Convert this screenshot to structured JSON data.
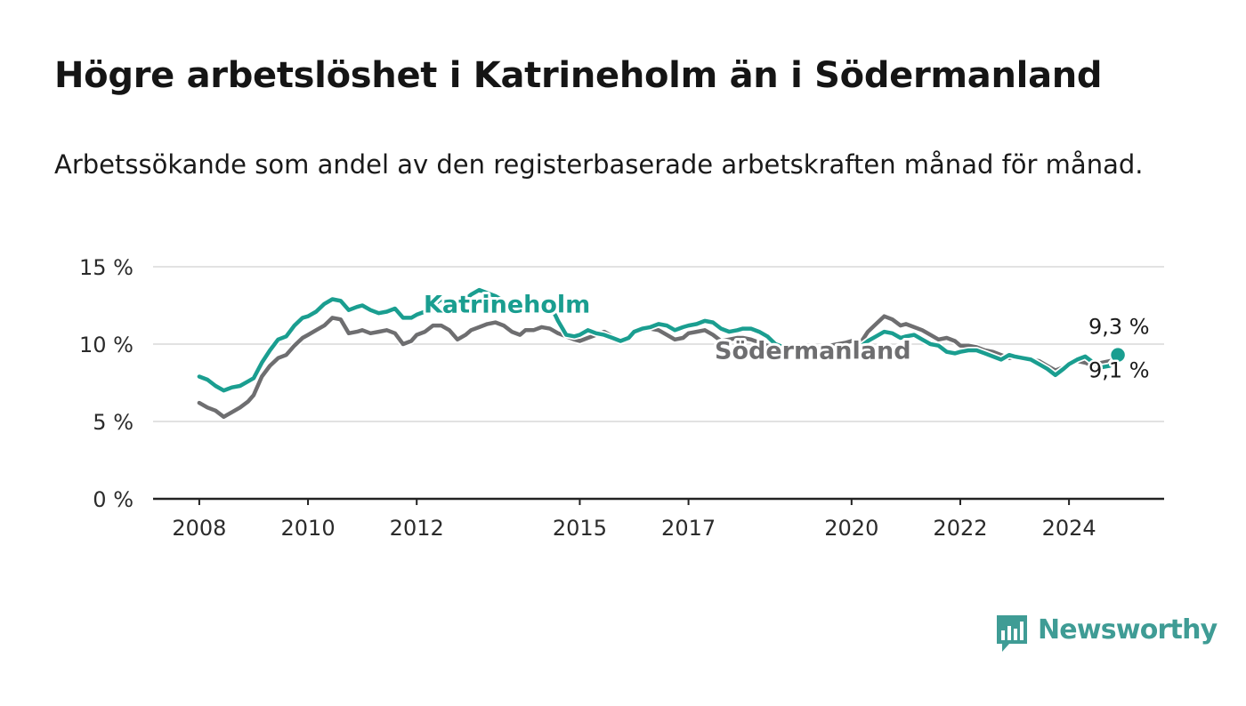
{
  "title": "Högre arbetslöshet i Katrineholm än i Södermanland",
  "subtitle": "Arbetssökande som andel av den registerbaserade arbetskraften månad för månad.",
  "brand": {
    "name": "Newsworthy",
    "color": "#3f9c95",
    "icon": "bar-chart-bubble-icon"
  },
  "chart_data": {
    "type": "line",
    "ylim": [
      0,
      15
    ],
    "yticks": [
      {
        "value": 0,
        "label": "0 %"
      },
      {
        "value": 5,
        "label": "5 %"
      },
      {
        "value": 10,
        "label": "10 %"
      },
      {
        "value": 15,
        "label": "15 %"
      }
    ],
    "xlim": [
      2007.15,
      2025.75
    ],
    "xticks": [
      {
        "value": 2008,
        "label": "2008"
      },
      {
        "value": 2010,
        "label": "2010"
      },
      {
        "value": 2012,
        "label": "2012"
      },
      {
        "value": 2015,
        "label": "2015"
      },
      {
        "value": 2017,
        "label": "2017"
      },
      {
        "value": 2020,
        "label": "2020"
      },
      {
        "value": 2022,
        "label": "2022"
      },
      {
        "value": 2024,
        "label": "2024"
      }
    ],
    "grid": true,
    "series": [
      {
        "name": "Södermanland",
        "color": "#6e6e70",
        "end_label": "9,1 %",
        "x": [
          2008.0,
          2008.15,
          2008.3,
          2008.45,
          2008.6,
          2008.75,
          2008.9,
          2009.0,
          2009.15,
          2009.3,
          2009.45,
          2009.6,
          2009.75,
          2009.9,
          2010.0,
          2010.15,
          2010.3,
          2010.45,
          2010.6,
          2010.75,
          2010.9,
          2011.0,
          2011.15,
          2011.3,
          2011.45,
          2011.6,
          2011.75,
          2011.9,
          2012.0,
          2012.15,
          2012.3,
          2012.45,
          2012.6,
          2012.75,
          2012.9,
          2013.0,
          2013.15,
          2013.3,
          2013.45,
          2013.6,
          2013.75,
          2013.9,
          2014.0,
          2014.15,
          2014.3,
          2014.45,
          2014.6,
          2014.75,
          2014.9,
          2015.0,
          2015.15,
          2015.3,
          2015.45,
          2015.6,
          2015.75,
          2015.9,
          2016.0,
          2016.15,
          2016.3,
          2016.45,
          2016.6,
          2016.75,
          2016.9,
          2017.0,
          2017.15,
          2017.3,
          2017.45,
          2017.6,
          2017.75,
          2017.9,
          2018.0,
          2018.15,
          2018.3,
          2018.45,
          2018.6,
          2018.75,
          2018.9,
          2019.0,
          2019.15,
          2019.3,
          2019.45,
          2019.6,
          2019.75,
          2019.9,
          2020.0,
          2020.15,
          2020.3,
          2020.45,
          2020.6,
          2020.75,
          2020.9,
          2021.0,
          2021.15,
          2021.3,
          2021.45,
          2021.6,
          2021.75,
          2021.9,
          2022.0,
          2022.15,
          2022.3,
          2022.45,
          2022.6,
          2022.75,
          2022.9,
          2023.0,
          2023.15,
          2023.3,
          2023.45,
          2023.6,
          2023.75,
          2023.9,
          2024.0,
          2024.15,
          2024.3,
          2024.45,
          2024.6,
          2024.75,
          2024.9
        ],
        "values": [
          6.2,
          5.9,
          5.7,
          5.3,
          5.6,
          5.9,
          6.3,
          6.7,
          7.9,
          8.6,
          9.1,
          9.3,
          9.9,
          10.4,
          10.6,
          10.9,
          11.2,
          11.7,
          11.6,
          10.7,
          10.8,
          10.9,
          10.7,
          10.8,
          10.9,
          10.7,
          10.0,
          10.2,
          10.6,
          10.8,
          11.2,
          11.2,
          10.9,
          10.3,
          10.6,
          10.9,
          11.1,
          11.3,
          11.4,
          11.2,
          10.8,
          10.6,
          10.9,
          10.9,
          11.1,
          11.0,
          10.7,
          10.5,
          10.3,
          10.2,
          10.4,
          10.6,
          10.8,
          10.5,
          10.2,
          10.3,
          10.7,
          10.9,
          11.0,
          10.9,
          10.6,
          10.3,
          10.4,
          10.7,
          10.8,
          10.9,
          10.6,
          10.2,
          10.3,
          10.4,
          10.4,
          10.3,
          10.1,
          9.9,
          9.8,
          9.7,
          9.7,
          9.6,
          9.6,
          9.7,
          9.8,
          9.9,
          10.0,
          10.1,
          10.2,
          10.0,
          10.8,
          11.3,
          11.8,
          11.6,
          11.2,
          11.3,
          11.1,
          10.9,
          10.6,
          10.3,
          10.4,
          10.2,
          9.9,
          9.9,
          9.8,
          9.6,
          9.5,
          9.3,
          9.1,
          9.2,
          9.1,
          9.0,
          8.9,
          8.6,
          8.3,
          8.5,
          8.7,
          8.9,
          8.8,
          8.6,
          8.8,
          8.9,
          9.1
        ]
      },
      {
        "name": "Katrineholm",
        "color": "#1a9e90",
        "end_label": "9,3 %",
        "x": [
          2008.0,
          2008.15,
          2008.3,
          2008.45,
          2008.6,
          2008.75,
          2008.9,
          2009.0,
          2009.15,
          2009.3,
          2009.45,
          2009.6,
          2009.75,
          2009.9,
          2010.0,
          2010.15,
          2010.3,
          2010.45,
          2010.6,
          2010.75,
          2010.9,
          2011.0,
          2011.15,
          2011.3,
          2011.45,
          2011.6,
          2011.75,
          2011.9,
          2012.0,
          2012.15,
          2012.3,
          2012.45,
          2012.6,
          2012.75,
          2012.9,
          2013.0,
          2013.15,
          2013.3,
          2013.45,
          2013.6,
          2013.75,
          2013.9,
          2014.0,
          2014.15,
          2014.3,
          2014.45,
          2014.6,
          2014.75,
          2014.9,
          2015.0,
          2015.15,
          2015.3,
          2015.45,
          2015.6,
          2015.75,
          2015.9,
          2016.0,
          2016.15,
          2016.3,
          2016.45,
          2016.6,
          2016.75,
          2016.9,
          2017.0,
          2017.15,
          2017.3,
          2017.45,
          2017.6,
          2017.75,
          2017.9,
          2018.0,
          2018.15,
          2018.3,
          2018.45,
          2018.6,
          2018.75,
          2018.9,
          2019.0,
          2019.15,
          2019.3,
          2019.45,
          2019.6,
          2019.75,
          2019.9,
          2020.0,
          2020.15,
          2020.3,
          2020.45,
          2020.6,
          2020.75,
          2020.9,
          2021.0,
          2021.15,
          2021.3,
          2021.45,
          2021.6,
          2021.75,
          2021.9,
          2022.0,
          2022.15,
          2022.3,
          2022.45,
          2022.6,
          2022.75,
          2022.9,
          2023.0,
          2023.15,
          2023.3,
          2023.45,
          2023.6,
          2023.75,
          2023.9,
          2024.0,
          2024.15,
          2024.3,
          2024.45,
          2024.6,
          2024.75,
          2024.9
        ],
        "values": [
          7.9,
          7.7,
          7.3,
          7.0,
          7.2,
          7.3,
          7.6,
          7.8,
          8.8,
          9.6,
          10.3,
          10.5,
          11.2,
          11.7,
          11.8,
          12.1,
          12.6,
          12.9,
          12.8,
          12.2,
          12.4,
          12.5,
          12.2,
          12.0,
          12.1,
          12.3,
          11.7,
          11.7,
          11.9,
          12.1,
          12.5,
          12.9,
          12.7,
          12.6,
          12.9,
          13.2,
          13.5,
          13.3,
          13.1,
          12.8,
          12.4,
          12.3,
          12.6,
          12.5,
          12.7,
          12.6,
          11.5,
          10.6,
          10.5,
          10.6,
          10.9,
          10.7,
          10.6,
          10.4,
          10.2,
          10.4,
          10.8,
          11.0,
          11.1,
          11.3,
          11.2,
          10.9,
          11.1,
          11.2,
          11.3,
          11.5,
          11.4,
          11.0,
          10.8,
          10.9,
          11.0,
          11.0,
          10.8,
          10.5,
          10.0,
          9.8,
          9.7,
          9.5,
          9.5,
          9.5,
          9.6,
          9.7,
          9.6,
          9.5,
          9.7,
          9.8,
          10.2,
          10.5,
          10.8,
          10.7,
          10.4,
          10.5,
          10.6,
          10.3,
          10.0,
          9.9,
          9.5,
          9.4,
          9.5,
          9.6,
          9.6,
          9.4,
          9.2,
          9.0,
          9.3,
          9.2,
          9.1,
          9.0,
          8.7,
          8.4,
          8.0,
          8.4,
          8.7,
          9.0,
          9.2,
          8.8,
          8.5,
          8.6,
          9.3
        ]
      }
    ]
  }
}
